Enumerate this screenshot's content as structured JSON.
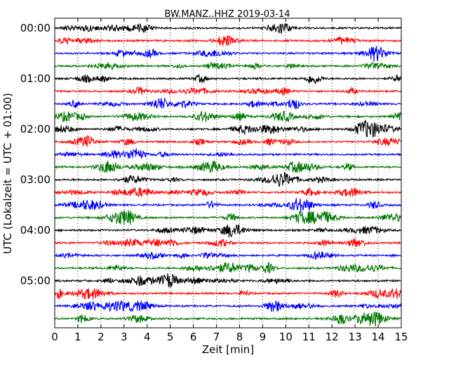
{
  "chart_data": {
    "type": "line",
    "title": "BW.MANZ..HHZ 2019-03-14",
    "xlabel": "Zeit  [min]",
    "ylabel": "UTC (Lokalzeit = UTC + 01:00)",
    "xlim": [
      0,
      15
    ],
    "x_ticks": [
      0,
      1,
      2,
      3,
      4,
      5,
      6,
      7,
      8,
      9,
      10,
      11,
      12,
      13,
      14,
      15
    ],
    "x_tick_labels": [
      "0",
      "1",
      "2",
      "3",
      "4",
      "5",
      "6",
      "7",
      "8",
      "9",
      "10",
      "11",
      "12",
      "13",
      "14",
      "15"
    ],
    "y_tick_labels": [
      "00:00",
      "01:00",
      "02:00",
      "03:00",
      "04:00",
      "05:00"
    ],
    "y_tick_rows": [
      0,
      4,
      8,
      12,
      16,
      20
    ],
    "trace_count": 24,
    "trace_minutes": 15,
    "trace_colors": [
      "#000000",
      "#ff0000",
      "#0000ff",
      "#007700"
    ],
    "grid": {
      "vertical_dotted": true,
      "horizontal": false
    },
    "legend": "none"
  }
}
